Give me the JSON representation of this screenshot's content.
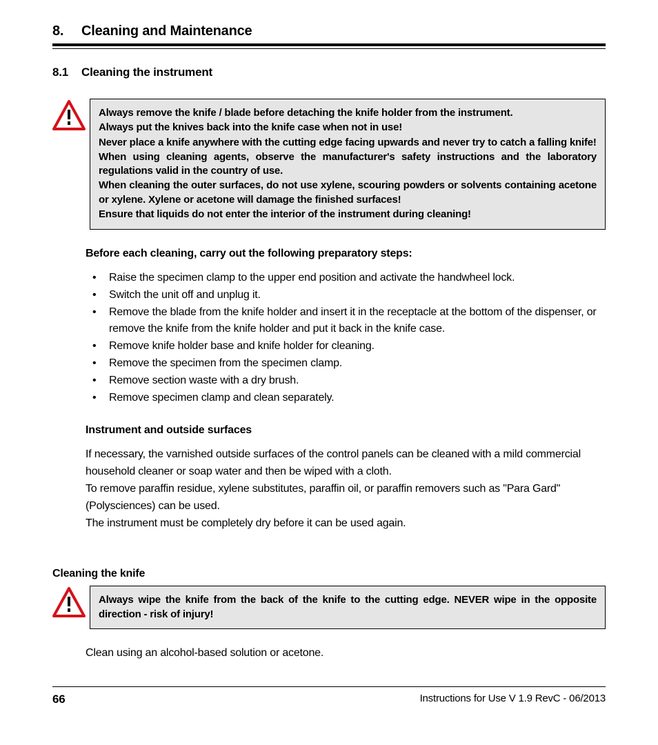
{
  "chapter": {
    "number": "8.",
    "title": "Cleaning and Maintenance"
  },
  "section": {
    "number": "8.1",
    "title": "Cleaning the instrument"
  },
  "warning1": {
    "lines": [
      "Always remove the knife / blade before detaching the knife holder from the instrument.",
      "Always put the knives back into the knife case when not in use!",
      "Never place a knife anywhere with the cutting edge facing upwards and never try to catch a falling knife!",
      "When using cleaning agents, observe the manufacturer's safety instructions and the laboratory regulations valid in the country of use.",
      "When cleaning the outer surfaces, do not use xylene, scouring powders or solvents containing acetone or xylene. Xylene or acetone will damage the finished surfaces!",
      "Ensure that liquids do not enter the interior of the instrument during cleaning!"
    ]
  },
  "prep_heading": "Before each cleaning, carry out the following preparatory steps:",
  "prep_bullets": [
    "Raise the specimen clamp to the upper end position and activate the handwheel lock.",
    "Switch the unit off and unplug it.",
    "Remove the blade from the knife holder and insert it in the receptacle at the bottom of the dispenser, or remove the knife from the knife holder and put it back in the knife case.",
    "Remove knife holder base and knife holder for cleaning.",
    "Remove the specimen from the specimen clamp.",
    "Remove section waste with a dry brush.",
    "Remove specimen clamp and clean separately."
  ],
  "surfaces_heading": "Instrument and outside surfaces",
  "surfaces_paras": [
    "If necessary, the varnished outside surfaces of the control panels can be cleaned with a mild commercial household cleaner or soap water and then be wiped with a cloth.",
    "To remove paraffin residue, xylene substitutes, paraffin oil, or paraffin removers such as \"Para Gard\" (Polysciences) can be used.",
    "The instrument must be completely dry before it can be used again."
  ],
  "knife_heading": "Cleaning the knife",
  "warning2": {
    "text": "Always wipe the knife from the back of the knife to the cutting edge. NEVER wipe in the opposite direction - risk of injury!"
  },
  "final_line": "Clean using an alcohol-based solution or acetone.",
  "footer": {
    "page": "66",
    "docver": "Instructions for Use V 1.9 RevC - 06/2013"
  },
  "icon": {
    "border_color": "#d4121a",
    "bang_color": "#000000"
  }
}
